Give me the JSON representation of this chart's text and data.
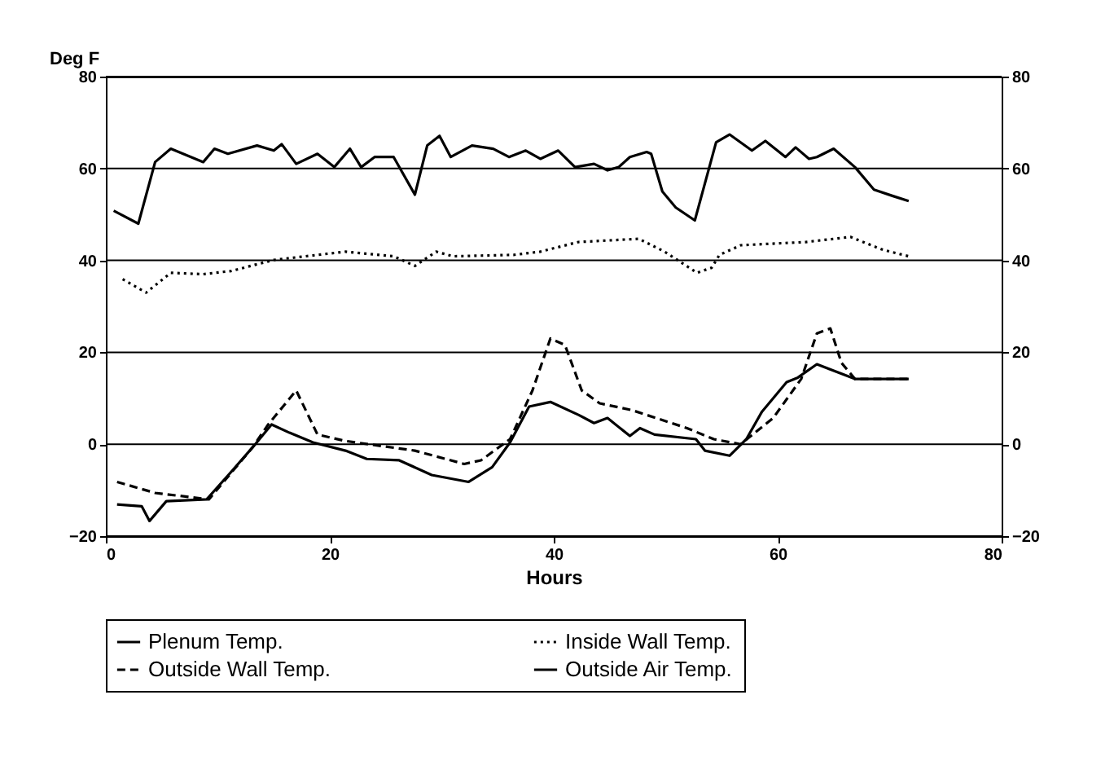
{
  "chart_data": {
    "type": "line",
    "ylabel": "Deg F",
    "xlabel": "Hours",
    "xlim": [
      0,
      80
    ],
    "xticks": [
      0,
      20,
      40,
      60,
      80
    ],
    "ylim": [
      -20,
      80
    ],
    "yticks": [
      -20,
      0,
      20,
      40,
      60,
      80
    ],
    "y2lim": [
      -20,
      80
    ],
    "y2ticks": [
      -20,
      0,
      20,
      40,
      60,
      80
    ],
    "grid": "y",
    "legend": "bottom",
    "series": [
      {
        "name": "Plenum Temp.",
        "color": "#000000",
        "line_style": "solid",
        "x": [
          0.7,
          2.9,
          4.4,
          5.8,
          8.7,
          9.7,
          10.9,
          13.5,
          15,
          15.7,
          17,
          18.9,
          20.4,
          21.8,
          22.8,
          24,
          25.7,
          27.6,
          28.7,
          29.8,
          30.8,
          32.7,
          34.6,
          36,
          37.5,
          38.8,
          40.4,
          41.9,
          43.6,
          44.8,
          45.8,
          46.8,
          48.3,
          48.7,
          49.7,
          50.9,
          52.6,
          54.5,
          55.7,
          57.7,
          58.9,
          60.7,
          61.6,
          62.8,
          63.5,
          65,
          66.9,
          68.6,
          70.3,
          71.7
        ],
        "values": [
          50.8,
          48,
          61.4,
          64.3,
          61.4,
          64.3,
          63.2,
          65,
          63.9,
          65.3,
          61,
          63.2,
          60.3,
          64.3,
          60.3,
          62.5,
          62.5,
          54.3,
          65,
          67.1,
          62.5,
          65,
          64.3,
          62.5,
          63.9,
          62.1,
          63.9,
          60.3,
          61,
          59.6,
          60.3,
          62.5,
          63.6,
          63.2,
          55,
          51.5,
          48.7,
          65.7,
          67.4,
          63.9,
          66,
          62.5,
          64.6,
          62.1,
          62.5,
          64.3,
          60.3,
          55.4,
          54,
          52.9
        ]
      },
      {
        "name": "Inside Wall Temp.",
        "color": "#000000",
        "line_style": "dotted",
        "x": [
          1.5,
          3.6,
          5.8,
          8.7,
          11.2,
          15,
          18.9,
          21.4,
          25.7,
          27.6,
          29.5,
          31,
          36.4,
          38.8,
          42.2,
          47.6,
          49.9,
          52.8,
          54.1,
          54.8,
          56.7,
          62.5,
          66.5,
          69.4,
          71.7
        ],
        "values": [
          35.9,
          33,
          37.3,
          37,
          37.7,
          40.1,
          41.2,
          41.9,
          40.9,
          38.8,
          41.9,
          40.9,
          41.2,
          41.9,
          44,
          44.7,
          41.9,
          37.3,
          38.4,
          41.2,
          43.3,
          44,
          45.1,
          42.3,
          40.9
        ]
      },
      {
        "name": "Outside Wall Temp.",
        "color": "#000000",
        "line_style": "dashed",
        "x": [
          1,
          4.4,
          9.2,
          13.1,
          14.5,
          17,
          18.9,
          21.4,
          27.6,
          32,
          33.5,
          36.1,
          38.1,
          39.7,
          41,
          42.5,
          44.1,
          47,
          51.9,
          54.3,
          56.7,
          59.6,
          62.1,
          63.5,
          64.7,
          65.7,
          66.9,
          71.7
        ],
        "values": [
          -8.2,
          -10.6,
          -12,
          -0.7,
          4.3,
          11.7,
          2.1,
          0.7,
          -1.4,
          -4.3,
          -3.5,
          1.1,
          11.7,
          23,
          21.6,
          11.7,
          8.9,
          7.4,
          3.5,
          1.1,
          0,
          5.7,
          14.2,
          24.1,
          25.2,
          17.7,
          14.2,
          14.2
        ]
      },
      {
        "name": "Outside Air Temp.",
        "color": "#000000",
        "line_style": "solid",
        "x": [
          1,
          3.2,
          3.9,
          5.4,
          9,
          11.2,
          13.1,
          14.8,
          16.4,
          18.5,
          21.4,
          23.3,
          26.2,
          29.1,
          32.4,
          34.5,
          36.1,
          37.8,
          39.7,
          42.2,
          43.6,
          44.8,
          46.8,
          47.7,
          49,
          52.7,
          53.5,
          55.7,
          57.2,
          58.6,
          60.8,
          61.8,
          63.5,
          66.9,
          71.7
        ],
        "values": [
          -13.1,
          -13.5,
          -16.7,
          -12.4,
          -12,
          -6,
          -0.7,
          4.3,
          2.5,
          0.4,
          -1.4,
          -3.2,
          -3.5,
          -6.7,
          -8.2,
          -5,
          0.4,
          8.2,
          9.2,
          6.4,
          4.6,
          5.7,
          1.8,
          3.5,
          2.1,
          1.1,
          -1.4,
          -2.5,
          1.1,
          7.1,
          13.5,
          14.5,
          17.4,
          14.2,
          14.2
        ]
      }
    ]
  }
}
